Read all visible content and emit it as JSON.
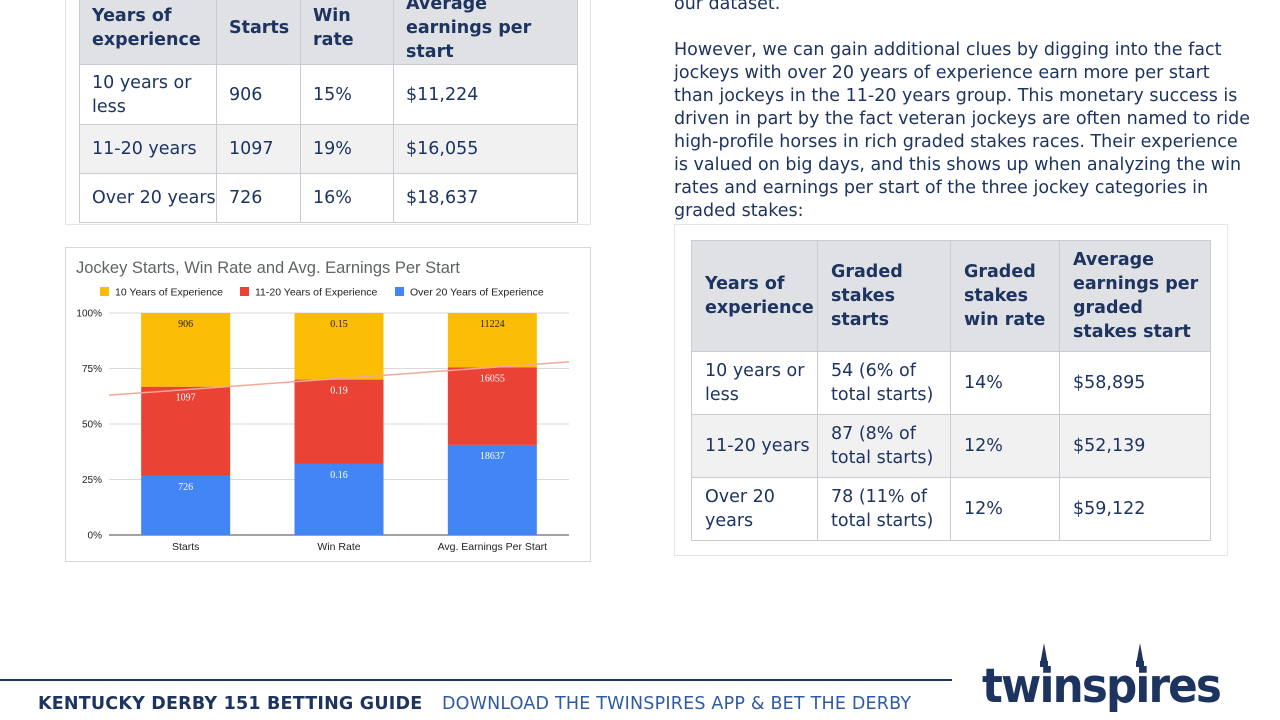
{
  "experience_table": {
    "headers": [
      "Years of experience",
      "Starts",
      "Win rate",
      "Average earnings per start"
    ],
    "rows": [
      [
        "10 years or less",
        "906",
        "15%",
        "$11,224"
      ],
      [
        "11-20 years",
        "1097",
        "19%",
        "$16,055"
      ],
      [
        "Over 20 years",
        "726",
        "16%",
        "$18,637"
      ]
    ]
  },
  "body_text": {
    "paragraph_1": "our dataset.",
    "paragraph_2": "However, we can gain additional clues by digging into the fact jockeys with over 20 years of experience earn more per start than jockeys in the 11-20 years group. This monetary success is driven in part by the fact veteran jockeys are often named to ride high-profile horses in rich graded stakes races. Their experience is valued on big days, and this shows up when analyzing the win rates and earnings per start of the three jockey categories in graded stakes:"
  },
  "graded_table": {
    "headers": [
      "Years of experience",
      "Graded stakes starts",
      "Graded stakes win rate",
      "Average earnings per graded stakes start"
    ],
    "rows": [
      [
        "10 years or less",
        "54 (6% of total starts)",
        "14%",
        "$58,895"
      ],
      [
        "11-20 years",
        "87 (8% of total starts)",
        "12%",
        "$52,139"
      ],
      [
        "Over 20 years",
        "78 (11% of total starts)",
        "12%",
        "$59,122"
      ]
    ]
  },
  "chart_data": {
    "type": "bar",
    "stacked": "percent",
    "title": "Jockey Starts, Win Rate and Avg. Earnings Per Start",
    "categories": [
      "Starts",
      "Win Rate",
      "Avg. Earnings Per Start"
    ],
    "series": [
      {
        "name": "10 Years of Experience",
        "color": "#fbbc04",
        "values": [
          906,
          0.15,
          11224
        ],
        "labels": [
          "906",
          "0.15",
          "11224"
        ]
      },
      {
        "name": "11-20 Years of Experience",
        "color": "#ea4335",
        "values": [
          1097,
          0.19,
          16055
        ],
        "labels": [
          "1097",
          "0.19",
          "16055"
        ]
      },
      {
        "name": "Over 20 Years of Experience",
        "color": "#4285f4",
        "values": [
          726,
          0.16,
          18637
        ],
        "labels": [
          "726",
          "0.16",
          "18637"
        ]
      }
    ],
    "stack_order": [
      "Over 20 Years of Experience",
      "11-20 Years of Experience",
      "10 Years of Experience"
    ],
    "y_ticks": [
      "0%",
      "25%",
      "50%",
      "75%",
      "100%"
    ],
    "ylim": [
      0,
      1
    ],
    "legend_position": "top",
    "grid": true,
    "trendline": {
      "color": "#f4a896",
      "start": 0.63,
      "end": 0.78
    }
  },
  "footer": {
    "title": "KENTUCKY DERBY 151 BETTING GUIDE",
    "cta": "DOWNLOAD THE TWINSPIRES APP & BET THE DERBY"
  },
  "logo": {
    "text": "twinspires",
    "color": "#1d3461"
  }
}
